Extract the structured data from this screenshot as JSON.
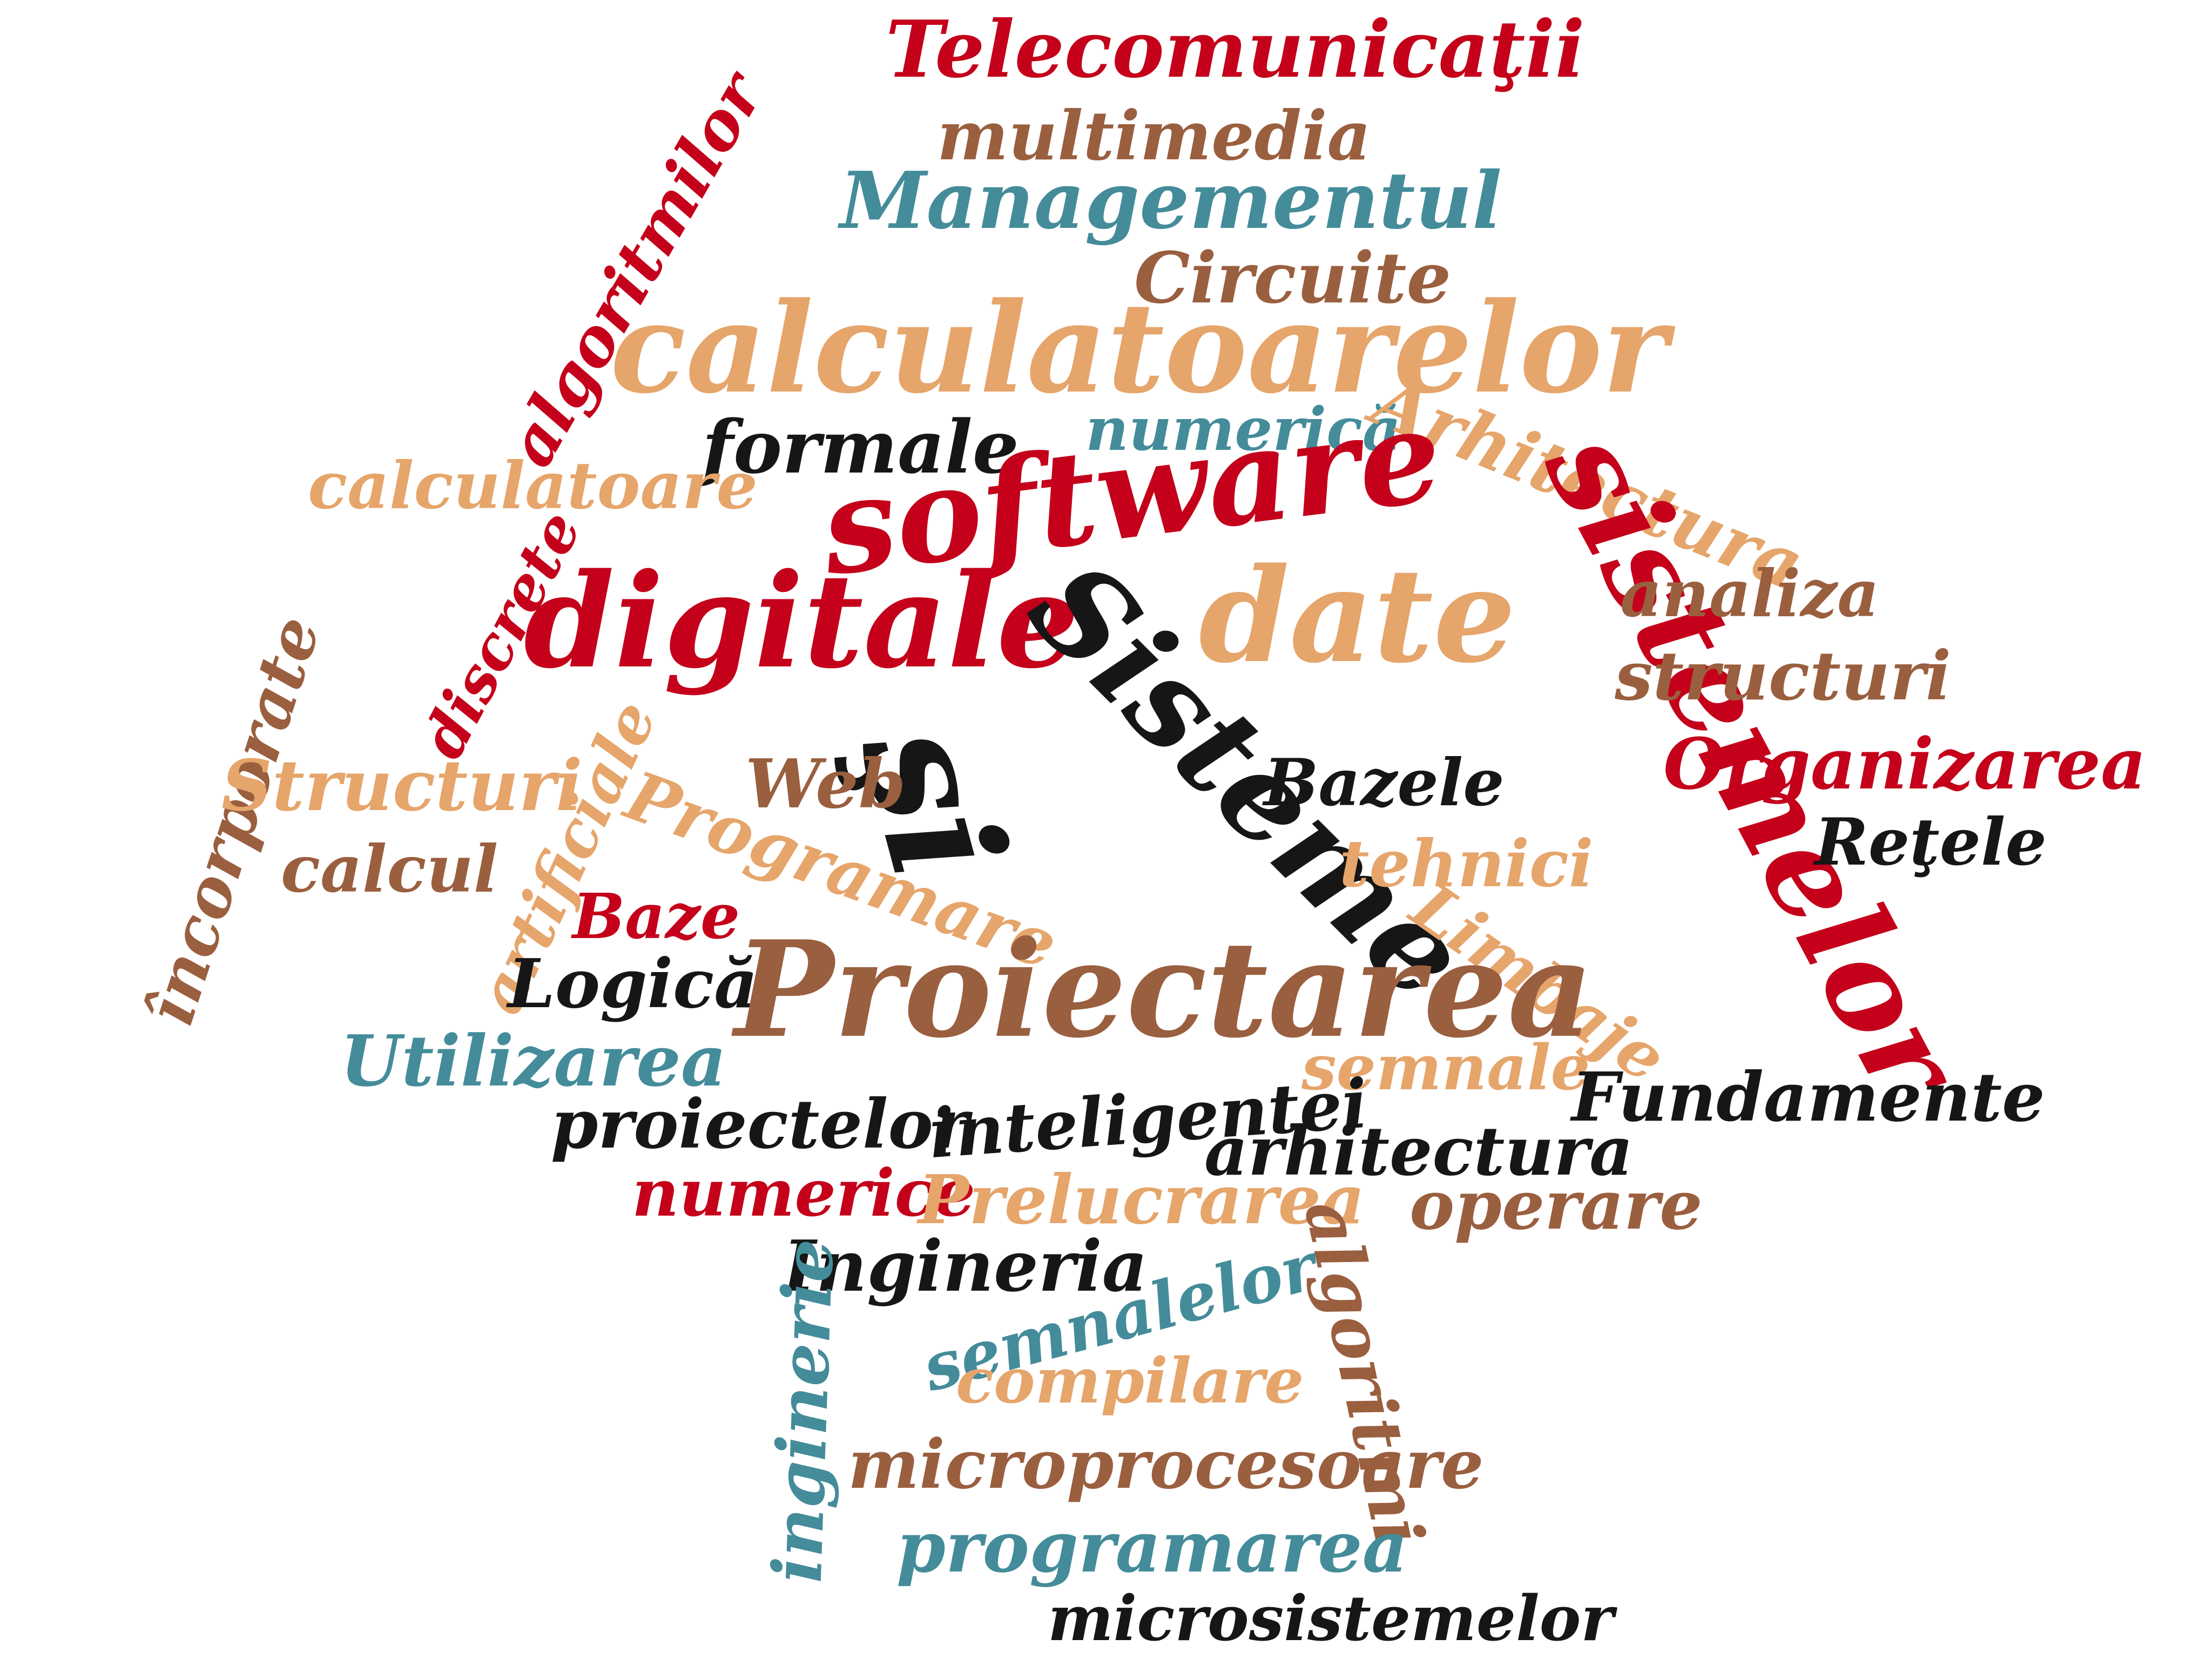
{
  "colors": {
    "red": "#c4001a",
    "orange": "#e6a56b",
    "brown": "#9a5f3f",
    "teal": "#448c9a",
    "black": "#161616"
  },
  "words": {
    "telecomunicatii": "Telecomunicaţii",
    "multimedia": "multimedia",
    "managementul": "Managementul",
    "algoritmilor": "algoritmilor",
    "circuite": "Circuite",
    "calculatoarelor": "calculatoarelor",
    "formale": "formale",
    "numerica": "numerică",
    "arhitectura_cap": "Arhitectura",
    "calculatoare": "calculatoare",
    "software": "software",
    "discrete": "discrete",
    "digitale": "digitale",
    "sisteme": "Sisteme",
    "date": "date",
    "sistemelor": "sistemelor",
    "analiza": "analiza",
    "structuri": "structuri",
    "incorporate": "încorporate",
    "si": "şi",
    "artificiale": "artificiale",
    "structuri_cap": "Structuri",
    "web": "Web",
    "bazele": "Bazele",
    "organizarea": "Organizarea",
    "programare": "Programare",
    "retelele": "Reţele",
    "calcul": "calcul",
    "tehnici": "tehnici",
    "baze": "Baze",
    "limbaje": "Limbaje",
    "logica": "Logică",
    "proiectarea": "Proiectarea",
    "utilizarea": "Utilizarea",
    "semnale": "semnale",
    "fundamente": "Fundamente",
    "proiectelor": "proiectelor",
    "inteligentei": "inteligentei",
    "arhitectura": "arhitectura",
    "numerice": "numerice",
    "prelucrarea": "Prelucrarea",
    "operare": "operare",
    "algoritmi": "algoritmi",
    "ingineria": "Ingineria",
    "inginerie": "inginerie",
    "semnalelor": "semnalelor",
    "compilare": "compilare",
    "microprocesoare": "microprocesoare",
    "programarea": "programarea",
    "microsistemelor": "microsistemelor"
  }
}
